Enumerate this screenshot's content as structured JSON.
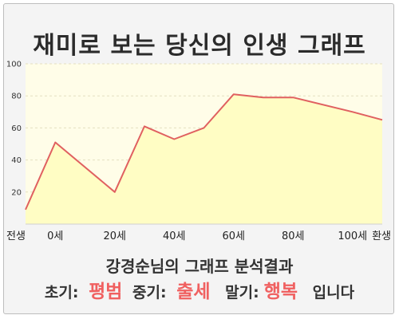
{
  "title": "재미로 보는 당신의 인생 그래프",
  "summary": "강경순님의 그래프 분석결과",
  "results": {
    "early_label": "초기:",
    "early_value": "평범",
    "mid_label": "중기:",
    "mid_value": "출세",
    "late_label": "말기:",
    "late_value": "행복",
    "ending": "입니다"
  },
  "colors": {
    "line": "#e06060",
    "fill": "#fffdc4",
    "plot_bg": "#fffde8",
    "accent": "#f06060"
  },
  "chart_data": {
    "type": "area",
    "ylim": [
      0,
      100
    ],
    "yticks": [
      20,
      40,
      60,
      80,
      100
    ],
    "grid": true,
    "xlim": [
      -10,
      110
    ],
    "xticks": [
      {
        "value": -10,
        "label": "전생"
      },
      {
        "value": 0,
        "label": "0세"
      },
      {
        "value": 20,
        "label": "20세"
      },
      {
        "value": 40,
        "label": "40세"
      },
      {
        "value": 60,
        "label": "60세"
      },
      {
        "value": 80,
        "label": "80세"
      },
      {
        "value": 100,
        "label": "100세"
      },
      {
        "value": 110,
        "label": "환생"
      }
    ],
    "x": [
      -10,
      0,
      20,
      30,
      40,
      50,
      60,
      70,
      80,
      100,
      110
    ],
    "y": [
      9,
      51,
      20,
      61,
      53,
      60,
      81,
      79,
      79,
      70,
      65
    ]
  }
}
